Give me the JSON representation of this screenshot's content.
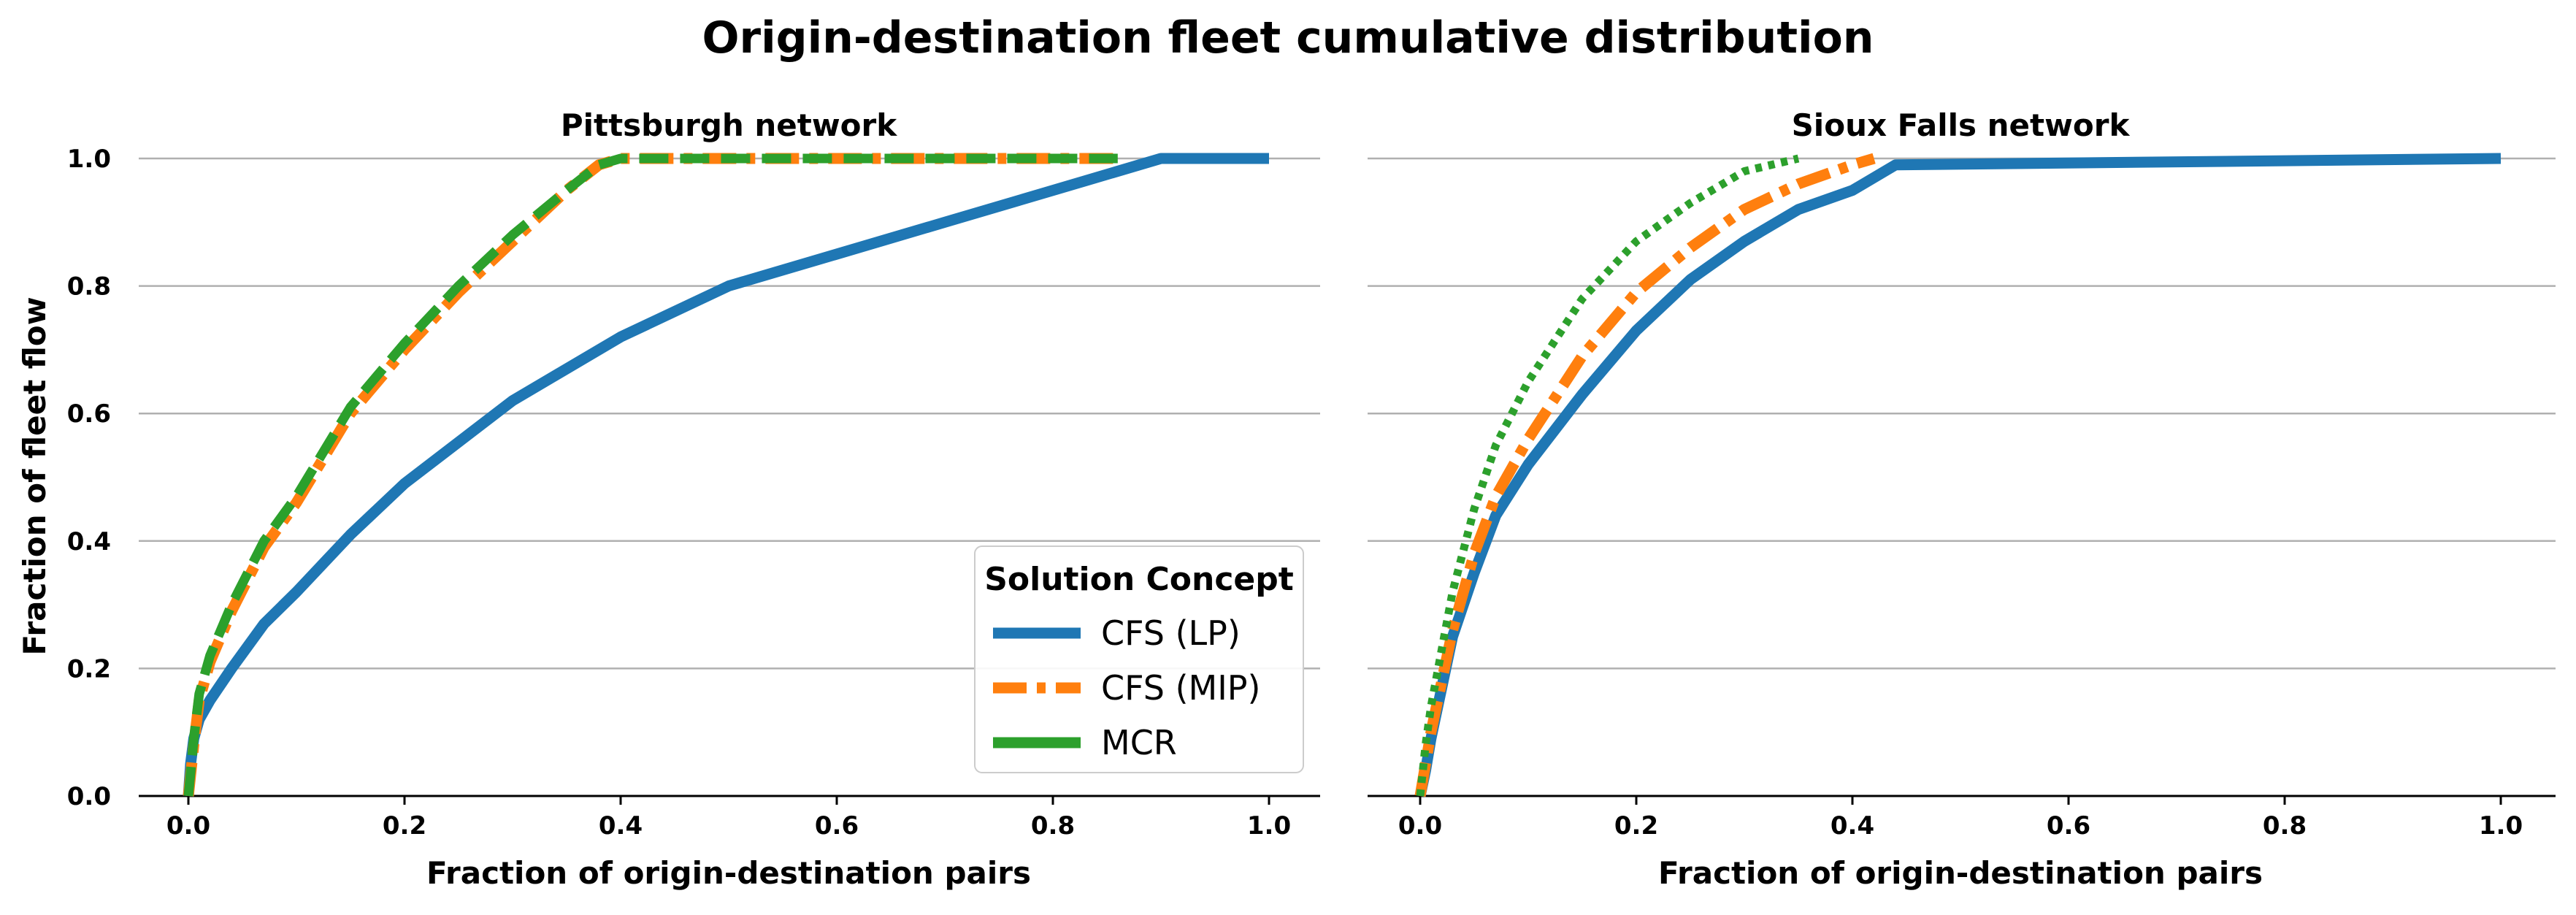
{
  "figure_title": "Origin-destination fleet cumulative distribution",
  "ylabel": "Fraction of fleet flow",
  "legend": {
    "title": "Solution Concept",
    "placement": "lower-right of left panel",
    "entries": [
      "CFS (LP)",
      "CFS (MIP)",
      "MCR"
    ]
  },
  "colors": {
    "CFS (LP)": "#1f77b4",
    "CFS (MIP)": "#ff7f0e",
    "MCR": "#2ca02c",
    "grid": "#b0b0b0"
  },
  "chart_data": [
    {
      "type": "line",
      "title": "Pittsburgh network",
      "xlabel": "Fraction of origin-destination pairs",
      "xlim": [
        0.0,
        1.0
      ],
      "ylim": [
        0.0,
        1.0
      ],
      "xticks": [
        "0.0",
        "0.2",
        "0.4",
        "0.6",
        "0.8",
        "1.0"
      ],
      "yticks": [
        "0.0",
        "0.2",
        "0.4",
        "0.6",
        "0.8",
        "1.0"
      ],
      "grid": "horizontal",
      "series": [
        {
          "name": "CFS (LP)",
          "style": "solid",
          "x": [
            0.0,
            0.002,
            0.005,
            0.01,
            0.02,
            0.04,
            0.07,
            0.1,
            0.15,
            0.2,
            0.3,
            0.4,
            0.5,
            0.6,
            0.7,
            0.8,
            0.86,
            0.9,
            1.0
          ],
          "y": [
            0.0,
            0.05,
            0.09,
            0.12,
            0.15,
            0.2,
            0.27,
            0.32,
            0.41,
            0.49,
            0.62,
            0.72,
            0.8,
            0.85,
            0.9,
            0.95,
            0.98,
            1.0,
            1.0
          ]
        },
        {
          "name": "CFS (MIP)",
          "style": "dashed",
          "x": [
            0.0,
            0.005,
            0.01,
            0.02,
            0.04,
            0.07,
            0.1,
            0.15,
            0.2,
            0.25,
            0.3,
            0.35,
            0.38,
            0.4,
            0.86
          ],
          "y": [
            0.0,
            0.08,
            0.15,
            0.21,
            0.29,
            0.39,
            0.46,
            0.6,
            0.7,
            0.79,
            0.87,
            0.95,
            0.99,
            1.0,
            1.0
          ]
        },
        {
          "name": "MCR",
          "style": "dashed",
          "x": [
            0.0,
            0.005,
            0.01,
            0.02,
            0.04,
            0.07,
            0.1,
            0.15,
            0.2,
            0.25,
            0.3,
            0.35,
            0.38,
            0.4,
            0.86
          ],
          "y": [
            0.0,
            0.09,
            0.16,
            0.22,
            0.3,
            0.4,
            0.47,
            0.61,
            0.71,
            0.8,
            0.88,
            0.95,
            0.99,
            1.0,
            1.0
          ]
        }
      ]
    },
    {
      "type": "line",
      "title": "Sioux Falls network",
      "xlabel": "Fraction of origin-destination pairs",
      "xlim": [
        0.0,
        1.0
      ],
      "ylim": [
        0.0,
        1.0
      ],
      "xticks": [
        "0.0",
        "0.2",
        "0.4",
        "0.6",
        "0.8",
        "1.0"
      ],
      "yticks": [],
      "grid": "horizontal",
      "series": [
        {
          "name": "CFS (LP)",
          "style": "solid",
          "x": [
            0.0,
            0.005,
            0.01,
            0.02,
            0.03,
            0.05,
            0.07,
            0.1,
            0.15,
            0.2,
            0.25,
            0.3,
            0.35,
            0.4,
            0.44,
            1.0
          ],
          "y": [
            0.0,
            0.04,
            0.09,
            0.17,
            0.25,
            0.35,
            0.44,
            0.52,
            0.63,
            0.73,
            0.81,
            0.87,
            0.92,
            0.95,
            0.99,
            1.0
          ]
        },
        {
          "name": "CFS (MIP)",
          "style": "dashed",
          "x": [
            0.0,
            0.005,
            0.01,
            0.02,
            0.03,
            0.05,
            0.07,
            0.1,
            0.15,
            0.2,
            0.25,
            0.3,
            0.35,
            0.4,
            0.42
          ],
          "y": [
            0.0,
            0.05,
            0.1,
            0.18,
            0.26,
            0.38,
            0.47,
            0.56,
            0.69,
            0.79,
            0.86,
            0.92,
            0.96,
            0.99,
            1.0
          ]
        },
        {
          "name": "MCR",
          "style": "dotted",
          "x": [
            0.0,
            0.005,
            0.01,
            0.02,
            0.03,
            0.05,
            0.07,
            0.1,
            0.15,
            0.2,
            0.25,
            0.3,
            0.35
          ],
          "y": [
            0.0,
            0.08,
            0.14,
            0.23,
            0.32,
            0.45,
            0.55,
            0.65,
            0.78,
            0.87,
            0.93,
            0.98,
            1.0
          ]
        }
      ]
    }
  ]
}
